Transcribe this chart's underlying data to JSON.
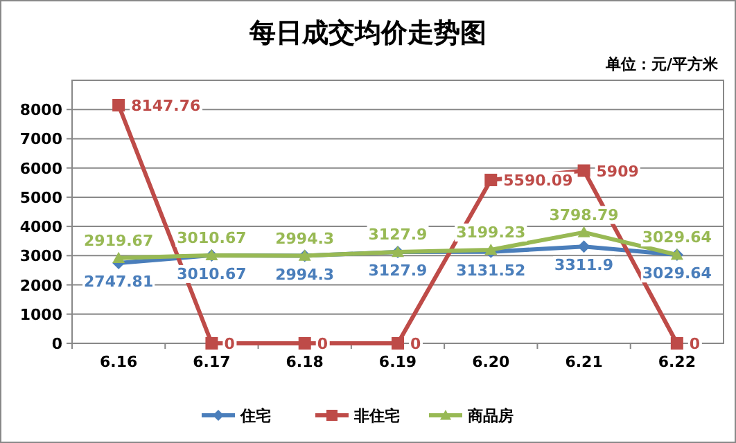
{
  "chart_data": {
    "type": "line",
    "title": "每日成交均价走势图",
    "annotations": [
      "单位：元/平方米"
    ],
    "categories": [
      "6.16",
      "6.17",
      "6.18",
      "6.19",
      "6.20",
      "6.21",
      "6.22"
    ],
    "series": [
      {
        "name": "住宅",
        "color": "#4a7ebb",
        "marker": "diamond",
        "values": [
          2747.81,
          3010.67,
          2994.3,
          3127.9,
          3131.52,
          3311.9,
          3029.64
        ]
      },
      {
        "name": "非住宅",
        "color": "#be4b48",
        "marker": "square",
        "values": [
          8147.76,
          0,
          0,
          0,
          5590.09,
          5909,
          0
        ]
      },
      {
        "name": "商品房",
        "color": "#98b954",
        "marker": "triangle",
        "values": [
          2919.67,
          3010.67,
          2994.3,
          3127.9,
          3199.23,
          3798.79,
          3029.64
        ]
      }
    ],
    "ylim": [
      0,
      9000
    ],
    "yticks": [
      0,
      1000,
      2000,
      3000,
      4000,
      5000,
      6000,
      7000,
      8000
    ],
    "grid": "y",
    "legend": "bottom",
    "data_labels": true,
    "line_style": "solid"
  }
}
